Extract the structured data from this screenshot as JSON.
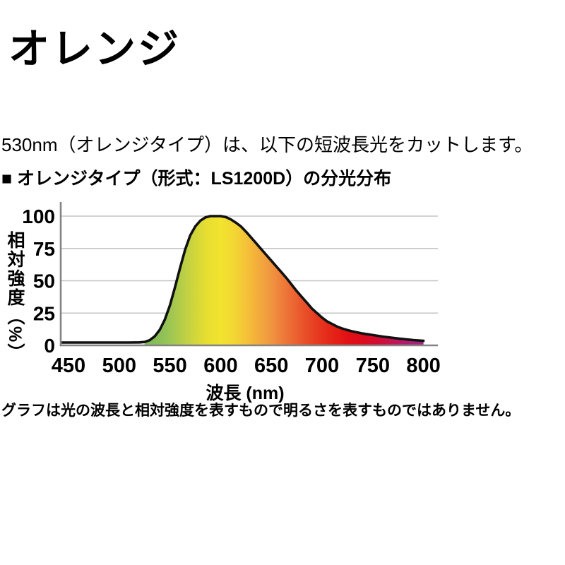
{
  "page": {
    "title": "オレンジ",
    "intro": "530nm（オレンジタイプ）は、以下の短波長光をカットします。",
    "chart_heading": "■ オレンジタイプ（形式：LS1200D）の分光分布",
    "footnote": "グラフは光の波長と相対強度を表すもので明るさを表すものではありません。"
  },
  "chart_data": {
    "type": "area",
    "title": "オレンジタイプ（形式：LS1200D）の分光分布",
    "xlabel": "波長 (nm)",
    "ylabel": "相対強度（%）",
    "xlim": [
      443,
      817
    ],
    "ylim": [
      0,
      100
    ],
    "x_ticks": [
      450,
      500,
      550,
      600,
      650,
      700,
      750,
      800
    ],
    "y_ticks": [
      0,
      25,
      50,
      75,
      100
    ],
    "grid": true,
    "legend_position": "none",
    "series": [
      {
        "name": "相対強度",
        "points": [
          [
            443,
            2.2
          ],
          [
            450,
            2.2
          ],
          [
            460,
            2.2
          ],
          [
            470,
            2.2
          ],
          [
            480,
            2.2
          ],
          [
            490,
            2.2
          ],
          [
            500,
            2.2
          ],
          [
            510,
            2.2
          ],
          [
            520,
            2.3
          ],
          [
            525,
            2.6
          ],
          [
            530,
            4
          ],
          [
            535,
            7
          ],
          [
            540,
            12
          ],
          [
            545,
            20
          ],
          [
            550,
            31
          ],
          [
            555,
            45
          ],
          [
            560,
            60
          ],
          [
            565,
            74
          ],
          [
            570,
            85
          ],
          [
            575,
            92
          ],
          [
            580,
            96.5
          ],
          [
            585,
            99
          ],
          [
            590,
            100
          ],
          [
            595,
            100
          ],
          [
            600,
            100
          ],
          [
            605,
            99.3
          ],
          [
            610,
            97.5
          ],
          [
            615,
            95
          ],
          [
            620,
            92
          ],
          [
            625,
            88
          ],
          [
            630,
            83.5
          ],
          [
            635,
            79
          ],
          [
            640,
            74.5
          ],
          [
            645,
            70
          ],
          [
            650,
            65.5
          ],
          [
            655,
            61
          ],
          [
            660,
            56.5
          ],
          [
            665,
            52
          ],
          [
            670,
            47
          ],
          [
            675,
            42
          ],
          [
            680,
            37.5
          ],
          [
            685,
            33
          ],
          [
            690,
            28.5
          ],
          [
            695,
            25
          ],
          [
            700,
            21.5
          ],
          [
            705,
            18.5
          ],
          [
            710,
            16.5
          ],
          [
            715,
            14.5
          ],
          [
            720,
            13
          ],
          [
            725,
            11.8
          ],
          [
            730,
            10.8
          ],
          [
            735,
            10
          ],
          [
            740,
            9.2
          ],
          [
            745,
            8.6
          ],
          [
            750,
            8
          ],
          [
            755,
            7.4
          ],
          [
            760,
            6.8
          ],
          [
            765,
            6.3
          ],
          [
            770,
            5.8
          ],
          [
            775,
            5.3
          ],
          [
            780,
            4.9
          ],
          [
            785,
            4.5
          ],
          [
            790,
            4.1
          ],
          [
            795,
            3.8
          ],
          [
            800,
            3.5
          ]
        ]
      }
    ],
    "fill_gradient": [
      {
        "nm": 520,
        "color": "#79b656"
      },
      {
        "nm": 545,
        "color": "#92c257"
      },
      {
        "nm": 565,
        "color": "#bdd044"
      },
      {
        "nm": 585,
        "color": "#e6dd31"
      },
      {
        "nm": 600,
        "color": "#f2e42e"
      },
      {
        "nm": 615,
        "color": "#f3d434"
      },
      {
        "nm": 630,
        "color": "#f4b93a"
      },
      {
        "nm": 650,
        "color": "#f0953f"
      },
      {
        "nm": 665,
        "color": "#ed7438"
      },
      {
        "nm": 680,
        "color": "#e9552c"
      },
      {
        "nm": 695,
        "color": "#e63a20"
      },
      {
        "nm": 710,
        "color": "#e42417"
      },
      {
        "nm": 725,
        "color": "#e31114"
      },
      {
        "nm": 740,
        "color": "#dd0b1d"
      },
      {
        "nm": 755,
        "color": "#d20d33"
      },
      {
        "nm": 770,
        "color": "#c31553"
      },
      {
        "nm": 785,
        "color": "#ac1e72"
      },
      {
        "nm": 800,
        "color": "#9e2983"
      }
    ],
    "line_color": "#111111",
    "grid_color": "#c4c4c4",
    "axis_color": "#848484",
    "text_color": "#000000"
  }
}
